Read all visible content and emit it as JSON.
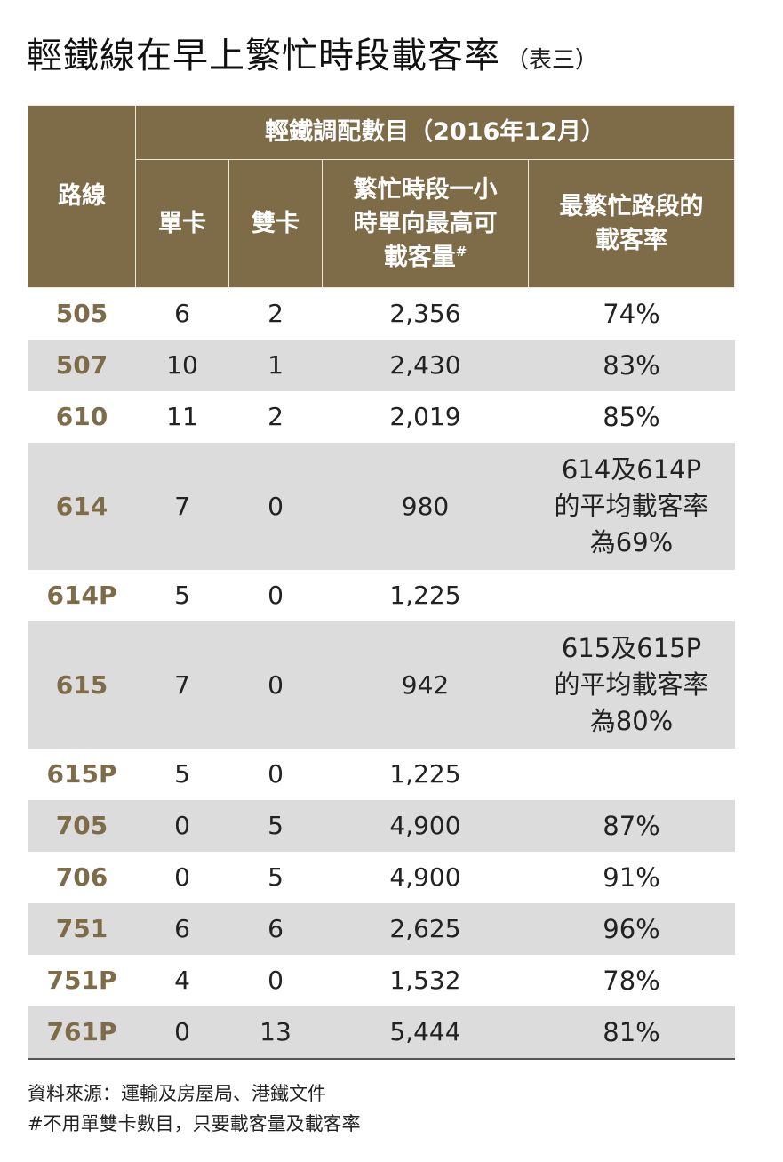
{
  "title": {
    "main": "輕鐵線在早上繁忙時段載客率",
    "sub": "（表三）"
  },
  "table": {
    "header": {
      "route": "路線",
      "group": "輕鐵調配數目（2016年12月）",
      "single": "單卡",
      "double": "雙卡",
      "capacity_lines": [
        "繁忙時段一小",
        "時單向最高可",
        "載客量"
      ],
      "capacity_mark": "#",
      "rate_lines": [
        "最繁忙路段的",
        "載客率"
      ]
    },
    "rows": [
      {
        "route": "505",
        "single": "6",
        "double": "2",
        "capacity": "2,356",
        "rate": [
          "74%"
        ]
      },
      {
        "route": "507",
        "single": "10",
        "double": "1",
        "capacity": "2,430",
        "rate": [
          "83%"
        ]
      },
      {
        "route": "610",
        "single": "11",
        "double": "2",
        "capacity": "2,019",
        "rate": [
          "85%"
        ]
      },
      {
        "route": "614",
        "single": "7",
        "double": "0",
        "capacity": "980",
        "rate": [
          "614及614P",
          "的平均載客率",
          "為69%"
        ]
      },
      {
        "route": "614P",
        "single": "5",
        "double": "0",
        "capacity": "1,225",
        "rate": []
      },
      {
        "route": "615",
        "single": "7",
        "double": "0",
        "capacity": "942",
        "rate": [
          "615及615P",
          "的平均載客率",
          "為80%"
        ]
      },
      {
        "route": "615P",
        "single": "5",
        "double": "0",
        "capacity": "1,225",
        "rate": []
      },
      {
        "route": "705",
        "single": "0",
        "double": "5",
        "capacity": "4,900",
        "rate": [
          "87%"
        ]
      },
      {
        "route": "706",
        "single": "0",
        "double": "5",
        "capacity": "4,900",
        "rate": [
          "91%"
        ]
      },
      {
        "route": "751",
        "single": "6",
        "double": "6",
        "capacity": "2,625",
        "rate": [
          "96%"
        ]
      },
      {
        "route": "751P",
        "single": "4",
        "double": "0",
        "capacity": "1,532",
        "rate": [
          "78%"
        ]
      },
      {
        "route": "761P",
        "single": "0",
        "double": "13",
        "capacity": "5,444",
        "rate": [
          "81%"
        ]
      }
    ]
  },
  "footer": {
    "source": "資料來源：運輸及房屋局、港鐵文件",
    "note": "#不用單雙卡數目，只要載客量及載客率"
  },
  "colors": {
    "header_bg": "#7e6c49",
    "route_text": "#7e6c49",
    "shade": "#dcdcdc"
  }
}
